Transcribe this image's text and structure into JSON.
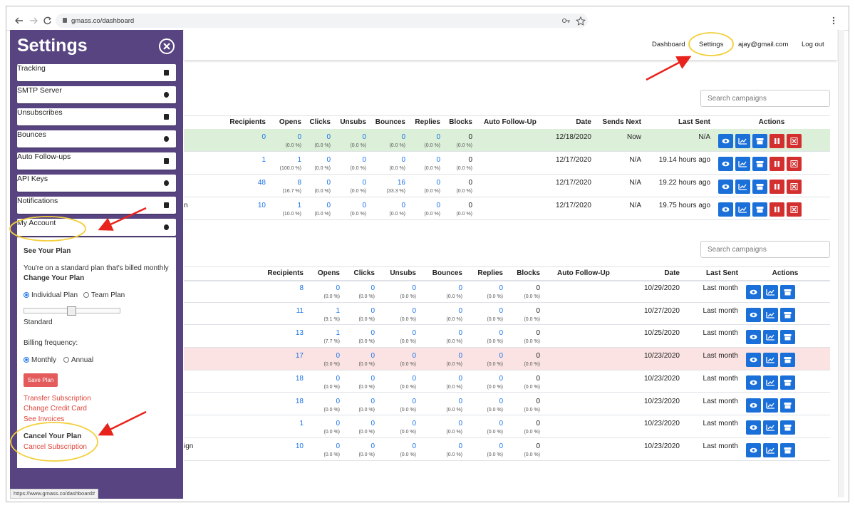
{
  "browser": {
    "url": "gmass.co/dashboard",
    "status_url": "https://www.gmass.co/dashboard#"
  },
  "nav": [
    "Dashboard",
    "Settings",
    "ajay@gmail.com",
    "Log out"
  ],
  "sidebar": {
    "title": "Settings",
    "menu": [
      "Tracking",
      "SMTP Server",
      "Unsubscribes",
      "Bounces",
      "Auto Follow-ups",
      "API Keys",
      "Notifications",
      "My Account"
    ],
    "account": {
      "section": "See Your Plan",
      "plan_text": "You're on a standard plan that's billed monthly",
      "change": "Change Your Plan",
      "plan_options": [
        "Individual Plan",
        "Team Plan"
      ],
      "plan_level": "Standard",
      "billing_label": "Billing frequency:",
      "billing_options": [
        "Monthly",
        "Annual"
      ],
      "save": "Save Plan",
      "links": [
        "Transfer Subscription",
        "Change Credit Card",
        "See Invoices"
      ],
      "cancel_heading": "Cancel Your Plan",
      "cancel_link": "Cancel Subscription"
    }
  },
  "tables": [
    {
      "search": "Search campaigns",
      "columns": [
        "Recipients",
        "Opens",
        "Clicks",
        "Unsubs",
        "Bounces",
        "Replies",
        "Blocks",
        "Auto Follow-Up",
        "Date",
        "Sends Next",
        "Last Sent",
        "Actions"
      ],
      "rows": [
        {
          "highlight": "#dcf0d9",
          "recipients": "0",
          "stats": [
            [
              "0",
              "(0.0 %)"
            ],
            [
              "0",
              "(0.0 %)"
            ],
            [
              "0",
              "(0.0 %)"
            ],
            [
              "0",
              "(0.0 %)"
            ],
            [
              "0",
              "(0.0 %)"
            ],
            [
              "0",
              "(0.0 %)"
            ]
          ],
          "date": "12/18/2020",
          "sends_next": "Now",
          "last_sent": "N/A"
        },
        {
          "recipients": "1",
          "stats": [
            [
              "1",
              "(100.0 %)"
            ],
            [
              "0",
              "(0.0 %)"
            ],
            [
              "0",
              "(0.0 %)"
            ],
            [
              "0",
              "(0.0 %)"
            ],
            [
              "0",
              "(0.0 %)"
            ],
            [
              "0",
              "(0.0 %)"
            ]
          ],
          "date": "12/17/2020",
          "sends_next": "N/A",
          "last_sent": "19.14 hours ago"
        },
        {
          "recipients": "48",
          "stats": [
            [
              "8",
              "(16.7 %)"
            ],
            [
              "0",
              "(0.0 %)"
            ],
            [
              "0",
              "(0.0 %)"
            ],
            [
              "16",
              "(33.3 %)"
            ],
            [
              "0",
              "(0.0 %)"
            ],
            [
              "0",
              "(0.0 %)"
            ]
          ],
          "date": "12/17/2020",
          "sends_next": "N/A",
          "last_sent": "19.22 hours ago"
        },
        {
          "name": "n",
          "recipients": "10",
          "stats": [
            [
              "1",
              "(10.0 %)"
            ],
            [
              "0",
              "(0.0 %)"
            ],
            [
              "0",
              "(0.0 %)"
            ],
            [
              "0",
              "(0.0 %)"
            ],
            [
              "0",
              "(0.0 %)"
            ],
            [
              "0",
              "(0.0 %)"
            ]
          ],
          "date": "12/17/2020",
          "sends_next": "N/A",
          "last_sent": "19.75 hours ago"
        }
      ]
    },
    {
      "search": "Search campaigns",
      "columns": [
        "Recipients",
        "Opens",
        "Clicks",
        "Unsubs",
        "Bounces",
        "Replies",
        "Blocks",
        "Auto Follow-Up",
        "Date",
        "Last Sent",
        "Actions"
      ],
      "rows": [
        {
          "recipients": "8",
          "stats": [
            [
              "0",
              "(0.0 %)"
            ],
            [
              "0",
              "(0.0 %)"
            ],
            [
              "0",
              "(0.0 %)"
            ],
            [
              "0",
              "(0.0 %)"
            ],
            [
              "0",
              "(0.0 %)"
            ],
            [
              "0",
              "(0.0 %)"
            ]
          ],
          "date": "10/29/2020",
          "last_sent": "Last month"
        },
        {
          "recipients": "11",
          "stats": [
            [
              "1",
              "(9.1 %)"
            ],
            [
              "0",
              "(0.0 %)"
            ],
            [
              "0",
              "(0.0 %)"
            ],
            [
              "0",
              "(0.0 %)"
            ],
            [
              "0",
              "(0.0 %)"
            ],
            [
              "0",
              "(0.0 %)"
            ]
          ],
          "date": "10/27/2020",
          "last_sent": "Last month"
        },
        {
          "recipients": "13",
          "stats": [
            [
              "1",
              "(7.7 %)"
            ],
            [
              "0",
              "(0.0 %)"
            ],
            [
              "0",
              "(0.0 %)"
            ],
            [
              "0",
              "(0.0 %)"
            ],
            [
              "0",
              "(0.0 %)"
            ],
            [
              "0",
              "(0.0 %)"
            ]
          ],
          "date": "10/25/2020",
          "last_sent": "Last month"
        },
        {
          "highlight": "#fbe3e3",
          "recipients": "17",
          "stats": [
            [
              "0",
              "(0.0 %)"
            ],
            [
              "0",
              "(0.0 %)"
            ],
            [
              "0",
              "(0.0 %)"
            ],
            [
              "0",
              "(0.0 %)"
            ],
            [
              "0",
              "(0.0 %)"
            ],
            [
              "0",
              "(0.0 %)"
            ]
          ],
          "date": "10/23/2020",
          "last_sent": "Last month"
        },
        {
          "recipients": "18",
          "stats": [
            [
              "0",
              "(0.0 %)"
            ],
            [
              "0",
              "(0.0 %)"
            ],
            [
              "0",
              "(0.0 %)"
            ],
            [
              "0",
              "(0.0 %)"
            ],
            [
              "0",
              "(0.0 %)"
            ],
            [
              "0",
              "(0.0 %)"
            ]
          ],
          "date": "10/23/2020",
          "last_sent": "Last month"
        },
        {
          "recipients": "18",
          "stats": [
            [
              "0",
              "(0.0 %)"
            ],
            [
              "0",
              "(0.0 %)"
            ],
            [
              "0",
              "(0.0 %)"
            ],
            [
              "0",
              "(0.0 %)"
            ],
            [
              "0",
              "(0.0 %)"
            ],
            [
              "0",
              "(0.0 %)"
            ]
          ],
          "date": "10/23/2020",
          "last_sent": "Last month"
        },
        {
          "recipients": "1",
          "stats": [
            [
              "0",
              "(0.0 %)"
            ],
            [
              "0",
              "(0.0 %)"
            ],
            [
              "0",
              "(0.0 %)"
            ],
            [
              "0",
              "(0.0 %)"
            ],
            [
              "0",
              "(0.0 %)"
            ],
            [
              "0",
              "(0.0 %)"
            ]
          ],
          "date": "10/23/2020",
          "last_sent": "Last month"
        },
        {
          "name": "ign",
          "recipients": "10",
          "stats": [
            [
              "0",
              "(0.0 %)"
            ],
            [
              "0",
              "(0.0 %)"
            ],
            [
              "0",
              "(0.0 %)"
            ],
            [
              "0",
              "(0.0 %)"
            ],
            [
              "0",
              "(0.0 %)"
            ],
            [
              "0",
              "(0.0 %)"
            ]
          ],
          "date": "10/23/2020",
          "last_sent": "Last month"
        }
      ]
    }
  ]
}
